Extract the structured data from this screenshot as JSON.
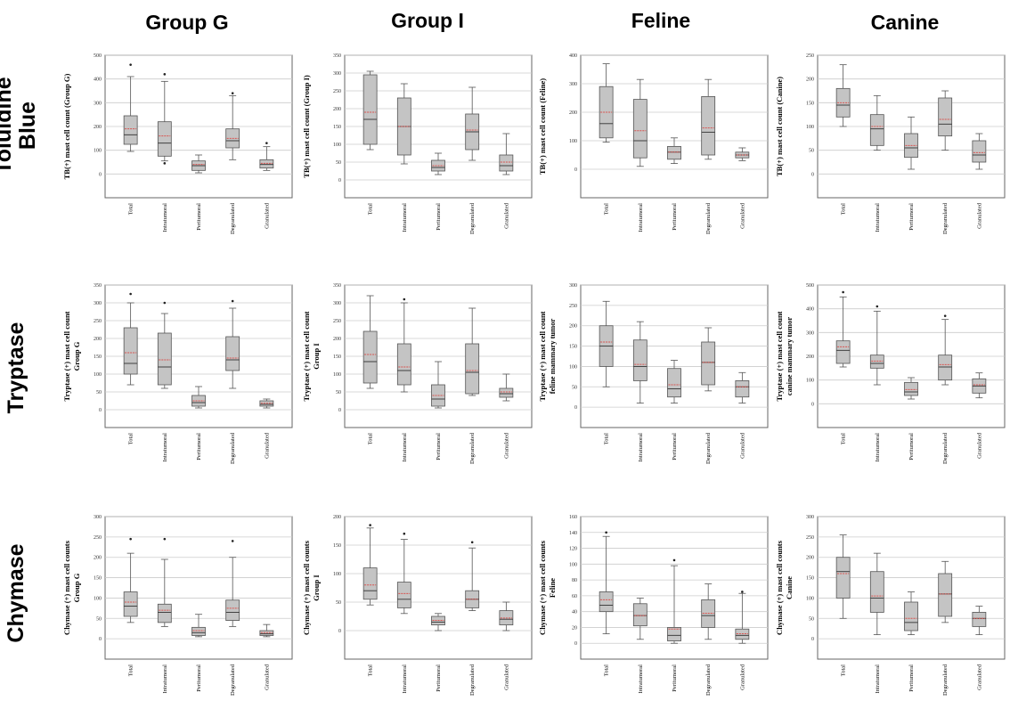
{
  "columns": [
    "Group G",
    "Group I",
    "Feline",
    "Canine"
  ],
  "rows": [
    [
      "Toluidine",
      "Blue"
    ],
    [
      "Tryptase"
    ],
    [
      "Chymase"
    ]
  ],
  "colors": {
    "box_fill": "#c4c4c4",
    "box_stroke": "#555555",
    "mean_line": "#d9534f",
    "grid": "#cccccc"
  },
  "chart_data": [
    {
      "type": "box",
      "ylabel": [
        "TB(+) mast cell count (Group G)"
      ],
      "ylim": [
        -100,
        500
      ],
      "yticks": [
        0,
        100,
        200,
        300,
        400,
        500
      ],
      "categories": [
        "Total",
        "Intratumoral",
        "Peritumoral",
        "Degranulated",
        "Granulated"
      ],
      "boxes": [
        {
          "min": 95,
          "q1": 125,
          "median": 165,
          "q3": 245,
          "max": 410,
          "mean": 190,
          "outliers": [
            460
          ]
        },
        {
          "min": 55,
          "q1": 75,
          "median": 130,
          "q3": 220,
          "max": 390,
          "mean": 160,
          "outliers": [
            420,
            45
          ]
        },
        {
          "min": 5,
          "q1": 15,
          "median": 35,
          "q3": 55,
          "max": 80,
          "mean": 40,
          "outliers": []
        },
        {
          "min": 60,
          "q1": 110,
          "median": 140,
          "q3": 190,
          "max": 330,
          "mean": 150,
          "outliers": [
            340
          ]
        },
        {
          "min": 15,
          "q1": 25,
          "median": 40,
          "q3": 60,
          "max": 115,
          "mean": 45,
          "outliers": [
            130
          ]
        }
      ]
    },
    {
      "type": "box",
      "ylabel": [
        "TB(+) mast cell count (Group I)"
      ],
      "ylim": [
        -50,
        350
      ],
      "yticks": [
        0,
        50,
        100,
        150,
        200,
        250,
        300,
        350
      ],
      "categories": [
        "Total",
        "Intratumoral",
        "Peritumoral",
        "Degranulated",
        "Granulated"
      ],
      "boxes": [
        {
          "min": 85,
          "q1": 100,
          "median": 170,
          "q3": 295,
          "max": 305,
          "mean": 190,
          "outliers": []
        },
        {
          "min": 45,
          "q1": 70,
          "median": 150,
          "q3": 230,
          "max": 270,
          "mean": 150,
          "outliers": []
        },
        {
          "min": 15,
          "q1": 25,
          "median": 35,
          "q3": 55,
          "max": 75,
          "mean": 40,
          "outliers": []
        },
        {
          "min": 55,
          "q1": 85,
          "median": 135,
          "q3": 185,
          "max": 260,
          "mean": 140,
          "outliers": []
        },
        {
          "min": 15,
          "q1": 25,
          "median": 40,
          "q3": 70,
          "max": 130,
          "mean": 50,
          "outliers": []
        }
      ]
    },
    {
      "type": "box",
      "ylabel": [
        "TB(+) mast cell count (Feline)"
      ],
      "ylim": [
        -100,
        400
      ],
      "yticks": [
        0,
        100,
        200,
        300,
        400
      ],
      "categories": [
        "Total",
        "Intratumoral",
        "Peritumoral",
        "Degranulated",
        "Granulated"
      ],
      "boxes": [
        {
          "min": 95,
          "q1": 110,
          "median": 160,
          "q3": 290,
          "max": 370,
          "mean": 200,
          "outliers": []
        },
        {
          "min": 10,
          "q1": 40,
          "median": 100,
          "q3": 245,
          "max": 315,
          "mean": 135,
          "outliers": []
        },
        {
          "min": 20,
          "q1": 35,
          "median": 60,
          "q3": 80,
          "max": 110,
          "mean": 60,
          "outliers": []
        },
        {
          "min": 35,
          "q1": 50,
          "median": 130,
          "q3": 255,
          "max": 315,
          "mean": 145,
          "outliers": []
        },
        {
          "min": 30,
          "q1": 40,
          "median": 50,
          "q3": 60,
          "max": 75,
          "mean": 50,
          "outliers": []
        }
      ]
    },
    {
      "type": "box",
      "ylabel": [
        "TB(+) mast cell count (Canine)"
      ],
      "ylim": [
        -50,
        250
      ],
      "yticks": [
        0,
        50,
        100,
        150,
        200,
        250
      ],
      "categories": [
        "Total",
        "Intratumoral",
        "Peritumoral",
        "Degranulated",
        "Granulated"
      ],
      "boxes": [
        {
          "min": 100,
          "q1": 120,
          "median": 145,
          "q3": 180,
          "max": 230,
          "mean": 150,
          "outliers": []
        },
        {
          "min": 50,
          "q1": 60,
          "median": 95,
          "q3": 125,
          "max": 165,
          "mean": 100,
          "outliers": []
        },
        {
          "min": 10,
          "q1": 35,
          "median": 55,
          "q3": 85,
          "max": 120,
          "mean": 60,
          "outliers": []
        },
        {
          "min": 50,
          "q1": 80,
          "median": 105,
          "q3": 160,
          "max": 175,
          "mean": 115,
          "outliers": []
        },
        {
          "min": 10,
          "q1": 25,
          "median": 40,
          "q3": 70,
          "max": 85,
          "mean": 45,
          "outliers": []
        }
      ]
    },
    {
      "type": "box",
      "ylabel": [
        "Tryptase (+) mast cell count",
        "Group G"
      ],
      "ylim": [
        -50,
        350
      ],
      "yticks": [
        0,
        50,
        100,
        150,
        200,
        250,
        300,
        350
      ],
      "categories": [
        "Total",
        "Intratumoral",
        "Peritumoral",
        "Degranulated",
        "Granulated"
      ],
      "boxes": [
        {
          "min": 70,
          "q1": 100,
          "median": 130,
          "q3": 230,
          "max": 300,
          "mean": 160,
          "outliers": [
            325
          ]
        },
        {
          "min": 60,
          "q1": 70,
          "median": 120,
          "q3": 215,
          "max": 270,
          "mean": 140,
          "outliers": [
            300
          ]
        },
        {
          "min": 5,
          "q1": 10,
          "median": 20,
          "q3": 40,
          "max": 65,
          "mean": 25,
          "outliers": []
        },
        {
          "min": 60,
          "q1": 110,
          "median": 140,
          "q3": 205,
          "max": 285,
          "mean": 145,
          "outliers": [
            305
          ]
        },
        {
          "min": 5,
          "q1": 10,
          "median": 15,
          "q3": 25,
          "max": 30,
          "mean": 18,
          "outliers": []
        }
      ]
    },
    {
      "type": "box",
      "ylabel": [
        "Tryptase (+) mast cell count",
        "Group I"
      ],
      "ylim": [
        -50,
        350
      ],
      "yticks": [
        0,
        50,
        100,
        150,
        200,
        250,
        300,
        350
      ],
      "categories": [
        "Total",
        "Intratumoral",
        "Peritumoral",
        "Degranulated",
        "Granulated"
      ],
      "boxes": [
        {
          "min": 60,
          "q1": 75,
          "median": 135,
          "q3": 220,
          "max": 320,
          "mean": 155,
          "outliers": []
        },
        {
          "min": 50,
          "q1": 70,
          "median": 110,
          "q3": 185,
          "max": 300,
          "mean": 120,
          "outliers": [
            310
          ]
        },
        {
          "min": 5,
          "q1": 10,
          "median": 30,
          "q3": 70,
          "max": 135,
          "mean": 40,
          "outliers": []
        },
        {
          "min": 40,
          "q1": 45,
          "median": 105,
          "q3": 185,
          "max": 285,
          "mean": 110,
          "outliers": []
        },
        {
          "min": 25,
          "q1": 35,
          "median": 45,
          "q3": 60,
          "max": 100,
          "mean": 50,
          "outliers": []
        }
      ]
    },
    {
      "type": "box",
      "ylabel": [
        "Tryptase (+) mast cell count",
        "feline mammary tumor"
      ],
      "ylim": [
        -50,
        300
      ],
      "yticks": [
        0,
        50,
        100,
        150,
        200,
        250,
        300
      ],
      "categories": [
        "Total",
        "Intratumoral",
        "Peritumoral",
        "Degranulated",
        "Granulated"
      ],
      "boxes": [
        {
          "min": 50,
          "q1": 100,
          "median": 150,
          "q3": 200,
          "max": 260,
          "mean": 160,
          "outliers": []
        },
        {
          "min": 10,
          "q1": 65,
          "median": 100,
          "q3": 165,
          "max": 210,
          "mean": 105,
          "outliers": []
        },
        {
          "min": 10,
          "q1": 25,
          "median": 45,
          "q3": 95,
          "max": 115,
          "mean": 55,
          "outliers": []
        },
        {
          "min": 40,
          "q1": 55,
          "median": 110,
          "q3": 160,
          "max": 195,
          "mean": 110,
          "outliers": []
        },
        {
          "min": 10,
          "q1": 25,
          "median": 50,
          "q3": 65,
          "max": 85,
          "mean": 50,
          "outliers": []
        }
      ]
    },
    {
      "type": "box",
      "ylabel": [
        "Tryptase (+) mast cell count",
        "canine mammary tumor"
      ],
      "ylim": [
        -100,
        500
      ],
      "yticks": [
        0,
        100,
        200,
        300,
        400,
        500
      ],
      "categories": [
        "Total",
        "Intratumoral",
        "Peritumoral",
        "Degranulated",
        "Granulated"
      ],
      "boxes": [
        {
          "min": 155,
          "q1": 170,
          "median": 225,
          "q3": 265,
          "max": 450,
          "mean": 240,
          "outliers": [
            470
          ]
        },
        {
          "min": 80,
          "q1": 150,
          "median": 170,
          "q3": 205,
          "max": 390,
          "mean": 180,
          "outliers": [
            410
          ]
        },
        {
          "min": 20,
          "q1": 35,
          "median": 50,
          "q3": 90,
          "max": 110,
          "mean": 60,
          "outliers": []
        },
        {
          "min": 80,
          "q1": 100,
          "median": 155,
          "q3": 205,
          "max": 355,
          "mean": 165,
          "outliers": [
            370
          ]
        },
        {
          "min": 25,
          "q1": 45,
          "median": 75,
          "q3": 105,
          "max": 130,
          "mean": 80,
          "outliers": []
        }
      ]
    },
    {
      "type": "box",
      "ylabel": [
        "Chymase (+)  mast  cell counts",
        "Group G"
      ],
      "ylim": [
        -50,
        300
      ],
      "yticks": [
        0,
        50,
        100,
        150,
        200,
        250,
        300
      ],
      "categories": [
        "Total",
        "Intratumoral",
        "Peritumoral",
        "Degranulated",
        "Granulated"
      ],
      "boxes": [
        {
          "min": 40,
          "q1": 55,
          "median": 80,
          "q3": 115,
          "max": 210,
          "mean": 90,
          "outliers": [
            245
          ]
        },
        {
          "min": 30,
          "q1": 40,
          "median": 65,
          "q3": 85,
          "max": 195,
          "mean": 70,
          "outliers": [
            245
          ]
        },
        {
          "min": 5,
          "q1": 8,
          "median": 15,
          "q3": 28,
          "max": 60,
          "mean": 20,
          "outliers": []
        },
        {
          "min": 30,
          "q1": 45,
          "median": 65,
          "q3": 95,
          "max": 200,
          "mean": 75,
          "outliers": [
            240
          ]
        },
        {
          "min": 5,
          "q1": 8,
          "median": 12,
          "q3": 20,
          "max": 35,
          "mean": 15,
          "outliers": []
        }
      ]
    },
    {
      "type": "box",
      "ylabel": [
        "Chymase (+)  mast  cell counts",
        "Group I"
      ],
      "ylim": [
        -50,
        200
      ],
      "yticks": [
        0,
        50,
        100,
        150,
        200
      ],
      "categories": [
        "Total",
        "Intratumoral",
        "Peritumoral",
        "Degranulated",
        "Granulated"
      ],
      "boxes": [
        {
          "min": 45,
          "q1": 55,
          "median": 70,
          "q3": 110,
          "max": 180,
          "mean": 80,
          "outliers": [
            185
          ]
        },
        {
          "min": 30,
          "q1": 40,
          "median": 55,
          "q3": 85,
          "max": 160,
          "mean": 65,
          "outliers": [
            170
          ]
        },
        {
          "min": 0,
          "q1": 10,
          "median": 15,
          "q3": 25,
          "max": 30,
          "mean": 18,
          "outliers": []
        },
        {
          "min": 35,
          "q1": 40,
          "median": 55,
          "q3": 70,
          "max": 145,
          "mean": 55,
          "outliers": [
            155
          ]
        },
        {
          "min": 0,
          "q1": 10,
          "median": 20,
          "q3": 35,
          "max": 50,
          "mean": 22,
          "outliers": []
        }
      ]
    },
    {
      "type": "box",
      "ylabel": [
        "Chymase (+)  mast  cell counts",
        "Feline"
      ],
      "ylim": [
        -20,
        160
      ],
      "yticks": [
        0,
        20,
        40,
        60,
        80,
        100,
        120,
        140,
        160
      ],
      "categories": [
        "Total",
        "Intratumoral",
        "Peritumoral",
        "Degranulated",
        "Granulated"
      ],
      "boxes": [
        {
          "min": 12,
          "q1": 40,
          "median": 48,
          "q3": 65,
          "max": 135,
          "mean": 55,
          "outliers": [
            140
          ]
        },
        {
          "min": 5,
          "q1": 22,
          "median": 35,
          "q3": 50,
          "max": 57,
          "mean": 35,
          "outliers": []
        },
        {
          "min": 0,
          "q1": 3,
          "median": 10,
          "q3": 20,
          "max": 98,
          "mean": 18,
          "outliers": [
            105
          ]
        },
        {
          "min": 5,
          "q1": 20,
          "median": 35,
          "q3": 55,
          "max": 75,
          "mean": 38,
          "outliers": []
        },
        {
          "min": 0,
          "q1": 5,
          "median": 10,
          "q3": 18,
          "max": 63,
          "mean": 12,
          "outliers": [
            65
          ]
        }
      ]
    },
    {
      "type": "box",
      "ylabel": [
        "Chymase (+)  mast  cell counts",
        "Canine"
      ],
      "ylim": [
        -50,
        300
      ],
      "yticks": [
        0,
        50,
        100,
        150,
        200,
        250,
        300
      ],
      "categories": [
        "Total",
        "Intratumoral",
        "Peritumoral",
        "Degranulated",
        "Granulated"
      ],
      "boxes": [
        {
          "min": 50,
          "q1": 100,
          "median": 165,
          "q3": 200,
          "max": 255,
          "mean": 160,
          "outliers": []
        },
        {
          "min": 10,
          "q1": 65,
          "median": 100,
          "q3": 165,
          "max": 210,
          "mean": 105,
          "outliers": []
        },
        {
          "min": 10,
          "q1": 20,
          "median": 40,
          "q3": 90,
          "max": 115,
          "mean": 50,
          "outliers": []
        },
        {
          "min": 40,
          "q1": 55,
          "median": 110,
          "q3": 160,
          "max": 190,
          "mean": 110,
          "outliers": []
        },
        {
          "min": 10,
          "q1": 30,
          "median": 50,
          "q3": 65,
          "max": 80,
          "mean": 50,
          "outliers": []
        }
      ]
    }
  ]
}
